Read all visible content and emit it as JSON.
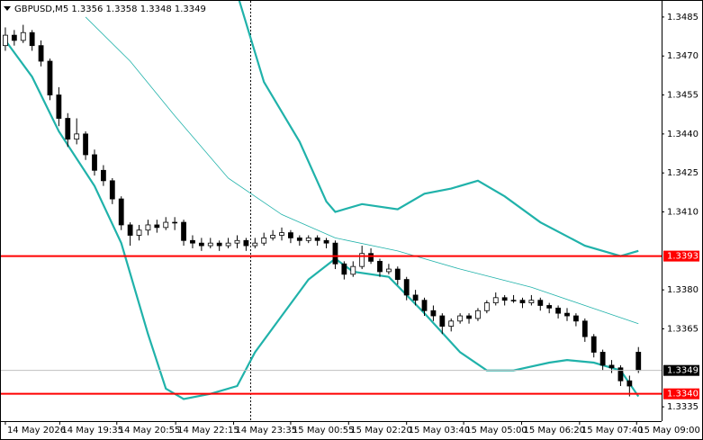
{
  "chart_data": {
    "type": "candlestick",
    "title": "GBPUSD,M5  1.3356 1.3358 1.3348 1.3349",
    "ylim": [
      1.33295,
      1.34912
    ],
    "yticks": [
      1.3485,
      {
        "value": 1.347,
        "label": "1.3470"
      },
      1.3455,
      {
        "value": 1.344,
        "label": "1.3440"
      },
      1.3425,
      {
        "value": 1.341,
        "label": "1.3410"
      },
      {
        "value": 1.338,
        "label": "1.3380"
      },
      1.3365,
      1.3335
    ],
    "xlim": [
      -0.6,
      73.6
    ],
    "xticks": [
      {
        "value": 0,
        "label": "14 May 2026"
      },
      {
        "value": 6.1,
        "label": "14 May 19:35"
      },
      {
        "value": 12.5,
        "label": "14 May 20:55"
      },
      {
        "value": 19.1,
        "label": "14 May 22:15"
      },
      {
        "value": 25.6,
        "label": "14 May 23:35"
      },
      {
        "value": 32,
        "label": "15 May 00:55"
      },
      {
        "value": 38.5,
        "label": "15 May 02:20"
      },
      {
        "value": 45,
        "label": "15 May 03:40"
      },
      {
        "value": 51.4,
        "label": "15 May 05:00"
      },
      {
        "value": 57.9,
        "label": "15 May 06:20"
      },
      {
        "value": 64.4,
        "label": "15 May 07:40"
      },
      {
        "value": 70.8,
        "label": "15 May 09:00"
      }
    ],
    "ohlc": [
      [
        1.3474,
        1.3481,
        1.3472,
        1.3478
      ],
      [
        1.3478,
        1.348,
        1.3474,
        1.3476
      ],
      [
        1.3476,
        1.3482,
        1.3475,
        1.3479
      ],
      [
        1.3479,
        1.348,
        1.3472,
        1.3474
      ],
      [
        1.3474,
        1.3476,
        1.3466,
        1.3468
      ],
      [
        1.3468,
        1.3469,
        1.3453,
        1.3455
      ],
      [
        1.3455,
        1.3458,
        1.3443,
        1.3446
      ],
      [
        1.3446,
        1.3448,
        1.3435,
        1.3438
      ],
      [
        1.3438,
        1.3446,
        1.3436,
        1.344
      ],
      [
        1.344,
        1.3441,
        1.343,
        1.3432
      ],
      [
        1.3432,
        1.3434,
        1.3424,
        1.3426
      ],
      [
        1.3426,
        1.3428,
        1.342,
        1.3422
      ],
      [
        1.3422,
        1.3423,
        1.3413,
        1.3415
      ],
      [
        1.3415,
        1.3416,
        1.3403,
        1.3405
      ],
      [
        1.3405,
        1.3406,
        1.3397,
        1.3401
      ],
      [
        1.3401,
        1.3405,
        1.3399,
        1.3403
      ],
      [
        1.3403,
        1.3407,
        1.3401,
        1.3405
      ],
      [
        1.3405,
        1.3407,
        1.3402,
        1.3404
      ],
      [
        1.3404,
        1.3408,
        1.3403,
        1.3406
      ],
      [
        1.3406,
        1.3408,
        1.3403,
        1.3406
      ],
      [
        1.3406,
        1.3407,
        1.3397,
        1.3399
      ],
      [
        1.3399,
        1.3401,
        1.3396,
        1.3398
      ],
      [
        1.3398,
        1.34,
        1.3395,
        1.3397
      ],
      [
        1.3397,
        1.34,
        1.3396,
        1.3398
      ],
      [
        1.3398,
        1.3399,
        1.3395,
        1.3397
      ],
      [
        1.3397,
        1.34,
        1.3396,
        1.3398
      ],
      [
        1.3398,
        1.3401,
        1.3396,
        1.3399
      ],
      [
        1.3399,
        1.34,
        1.3395,
        1.3397
      ],
      [
        1.3397,
        1.34,
        1.3396,
        1.3398
      ],
      [
        1.3398,
        1.3402,
        1.3397,
        1.34
      ],
      [
        1.34,
        1.3403,
        1.3399,
        1.3401
      ],
      [
        1.3401,
        1.3404,
        1.3399,
        1.3402
      ],
      [
        1.3402,
        1.3403,
        1.3398,
        1.34
      ],
      [
        1.34,
        1.3401,
        1.3397,
        1.3399
      ],
      [
        1.3399,
        1.3401,
        1.3398,
        1.34
      ],
      [
        1.34,
        1.3401,
        1.3397,
        1.3399
      ],
      [
        1.3399,
        1.34,
        1.3396,
        1.3398
      ],
      [
        1.3398,
        1.3399,
        1.3388,
        1.339
      ],
      [
        1.339,
        1.3391,
        1.3384,
        1.3386
      ],
      [
        1.3386,
        1.3391,
        1.3385,
        1.3389
      ],
      [
        1.3389,
        1.3397,
        1.3388,
        1.3394
      ],
      [
        1.3394,
        1.3396,
        1.339,
        1.3391
      ],
      [
        1.3391,
        1.3392,
        1.3385,
        1.3387
      ],
      [
        1.3387,
        1.339,
        1.3386,
        1.3388
      ],
      [
        1.3388,
        1.3389,
        1.3382,
        1.3384
      ],
      [
        1.3384,
        1.3385,
        1.3376,
        1.3378
      ],
      [
        1.3378,
        1.338,
        1.3374,
        1.3376
      ],
      [
        1.3376,
        1.3377,
        1.337,
        1.3372
      ],
      [
        1.3372,
        1.3374,
        1.3368,
        1.337
      ],
      [
        1.337,
        1.3371,
        1.3363,
        1.3366
      ],
      [
        1.3366,
        1.3369,
        1.3364,
        1.3368
      ],
      [
        1.3368,
        1.3371,
        1.3367,
        1.337
      ],
      [
        1.337,
        1.3371,
        1.3367,
        1.3369
      ],
      [
        1.3369,
        1.3373,
        1.3368,
        1.3372
      ],
      [
        1.3372,
        1.3376,
        1.3371,
        1.3375
      ],
      [
        1.3375,
        1.3379,
        1.3374,
        1.3377
      ],
      [
        1.3377,
        1.3378,
        1.3374,
        1.3376
      ],
      [
        1.3376,
        1.3378,
        1.3375,
        1.3376
      ],
      [
        1.3376,
        1.3377,
        1.3373,
        1.3375
      ],
      [
        1.3375,
        1.3378,
        1.3374,
        1.3376
      ],
      [
        1.3376,
        1.3377,
        1.3372,
        1.3374
      ],
      [
        1.3374,
        1.3375,
        1.3371,
        1.3373
      ],
      [
        1.3373,
        1.3374,
        1.3369,
        1.3371
      ],
      [
        1.3371,
        1.3373,
        1.3368,
        1.337
      ],
      [
        1.337,
        1.3371,
        1.3366,
        1.3368
      ],
      [
        1.3368,
        1.3369,
        1.336,
        1.3362
      ],
      [
        1.3362,
        1.3363,
        1.3354,
        1.3356
      ],
      [
        1.3356,
        1.3357,
        1.3349,
        1.3351
      ],
      [
        1.3351,
        1.3353,
        1.3348,
        1.335
      ],
      [
        1.335,
        1.3351,
        1.3343,
        1.3345
      ],
      [
        1.3345,
        1.3347,
        1.3339,
        1.3343
      ],
      [
        1.3356,
        1.3358,
        1.3348,
        1.3349
      ]
    ],
    "candle_colors": {
      "up": "#ffffff",
      "down": "#000000",
      "outline": "#000000"
    },
    "series": [
      {
        "color": "#20b2aa",
        "width": 0.8,
        "x": [
          9,
          14,
          19,
          25,
          31,
          37,
          44,
          51,
          59,
          65,
          71
        ],
        "values": [
          1.3485,
          1.3468,
          1.3447,
          1.3423,
          1.3409,
          1.34,
          1.3395,
          1.3388,
          1.3381,
          1.3374,
          1.3367
        ]
      },
      {
        "color": "#20b2aa",
        "width": 2.2,
        "x": [
          26,
          29,
          33,
          36,
          37,
          40,
          44,
          47,
          50,
          53,
          56,
          60,
          65,
          69,
          71
        ],
        "values": [
          1.3494,
          1.346,
          1.3437,
          1.3414,
          1.341,
          1.3413,
          1.3411,
          1.3417,
          1.3419,
          1.3422,
          1.3416,
          1.3406,
          1.3397,
          1.3393,
          1.3395
        ]
      },
      {
        "color": "#20b2aa",
        "width": 2.2,
        "x": [
          0,
          3,
          6,
          10,
          13,
          16,
          18,
          20,
          23,
          26,
          28,
          31,
          34,
          37,
          39,
          43,
          47,
          51,
          54,
          57,
          61,
          63,
          66,
          69,
          71
        ],
        "values": [
          1.3476,
          1.3462,
          1.3441,
          1.342,
          1.3398,
          1.3363,
          1.3342,
          1.3338,
          1.334,
          1.3343,
          1.3356,
          1.337,
          1.3384,
          1.3392,
          1.3387,
          1.3385,
          1.3371,
          1.3356,
          1.3349,
          1.3349,
          1.3352,
          1.3353,
          1.3352,
          1.3349,
          1.3339
        ]
      }
    ],
    "hlines": [
      {
        "value": 1.3393,
        "color": "#ff0000",
        "label_bg": "#ff0000",
        "label_fg": "#ffffff"
      },
      {
        "value": 1.3349,
        "color": "#c0c0c0",
        "label_bg": "#000000",
        "label_fg": "#ffffff"
      },
      {
        "value": {
          "value": 1.334,
          "label": "1.3340"
        },
        "color": "#ff0000",
        "label_bg": "#ff0000",
        "label_fg": "#ffffff"
      }
    ]
  }
}
